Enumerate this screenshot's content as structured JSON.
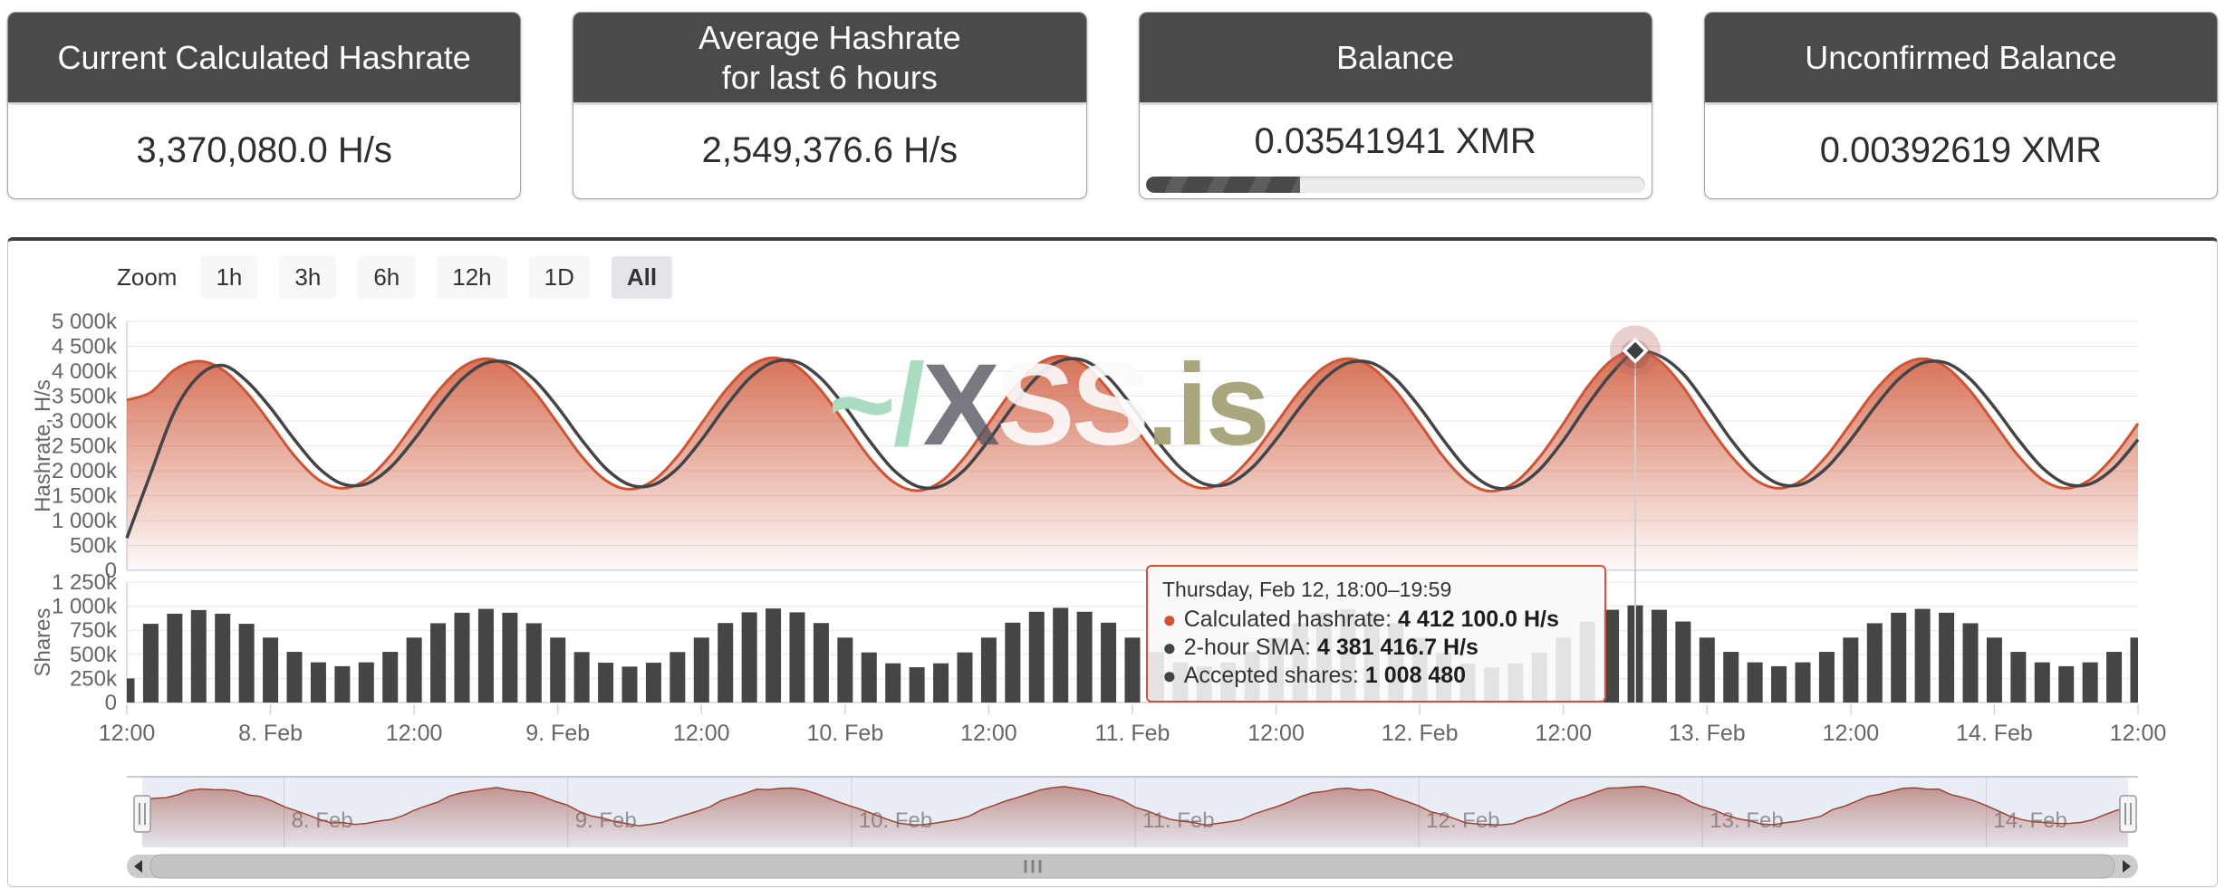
{
  "cards": [
    {
      "title": "Current Calculated Hashrate",
      "value": "3,370,080.0 H/s"
    },
    {
      "title": "Average Hashrate\nfor last 6 hours",
      "value": "2,549,376.6 H/s"
    },
    {
      "title": "Balance",
      "value": "0.03541941 XMR",
      "progress_percent": 31
    },
    {
      "title": "Unconfirmed Balance",
      "value": "0.00392619 XMR"
    }
  ],
  "toolbar": {
    "zoom_label": "Zoom",
    "buttons": [
      "1h",
      "3h",
      "6h",
      "12h",
      "1D",
      "All"
    ],
    "selected": "All"
  },
  "watermark": {
    "part1": "~/",
    "part2": "X",
    "part3": "SS",
    "part4": ".is"
  },
  "tooltip": {
    "header": "Thursday, Feb 12, 18:00–19:59",
    "rows": [
      {
        "label": "Calculated hashrate",
        "value": "4 412 100.0 H/s",
        "bullet_color": "#cf5434"
      },
      {
        "label": "2-hour SMA",
        "value": "4 381 416.7 H/s",
        "bullet_color": "#434348"
      },
      {
        "label": "Accepted shares",
        "value": "1 008 480",
        "bullet_color": "#434348"
      }
    ]
  },
  "chart_data": {
    "type": "stock (area + line + column) with navigator",
    "x_unit": "hours since Feb 7 12:00, one point per 2 hours",
    "x_range_hours": [
      0,
      168
    ],
    "x_tick_interval_hours": 12,
    "x_tick_labels": [
      "12:00",
      "8. Feb",
      "12:00",
      "9. Feb",
      "12:00",
      "10. Feb",
      "12:00",
      "11. Feb",
      "12:00",
      "12. Feb",
      "12:00",
      "13. Feb",
      "12:00",
      "14. Feb",
      "12:00"
    ],
    "hashrate_axis": {
      "title": "Hashrate, H/s",
      "min": 0,
      "max": 5000000,
      "tick_step": 500000,
      "tick_labels": [
        "0",
        "500k",
        "1 000k",
        "1 500k",
        "2 000k",
        "2 500k",
        "3 000k",
        "3 500k",
        "4 000k",
        "4 500k",
        "5 000k"
      ]
    },
    "shares_axis": {
      "title": "Shares",
      "min": 0,
      "max": 1250000,
      "tick_step": 250000,
      "tick_labels": [
        "0",
        "250k",
        "500k",
        "750k",
        "1 000k",
        "1 250k"
      ]
    },
    "series": [
      {
        "name": "Calculated hashrate",
        "type": "area",
        "color": "#cf5434",
        "unit": "H/s (values in thousands)",
        "values_kH": [
          3420,
          3575,
          4032,
          4200,
          4032,
          3575,
          2950,
          2300,
          1824,
          1650,
          1824,
          2300,
          2950,
          3600,
          4076,
          4250,
          4076,
          3600,
          2950,
          2290,
          1807,
          1630,
          1807,
          2290,
          2950,
          3610,
          4093,
          4270,
          4093,
          3610,
          2950,
          2275,
          1781,
          1600,
          1781,
          2275,
          2950,
          3625,
          4119,
          4300,
          4119,
          3625,
          2950,
          2300,
          1824,
          1650,
          1824,
          2300,
          2950,
          3600,
          4076,
          4250,
          4076,
          3600,
          2950,
          2270,
          1772,
          1590,
          1772,
          2270,
          2950,
          3680,
          4214,
          4412.1,
          4214,
          3680,
          2950,
          2300,
          1824,
          1650,
          1824,
          2300,
          2950,
          3600,
          4076,
          4250,
          4076,
          3600,
          2950,
          2300,
          1824,
          1650,
          1824,
          2300,
          2950
        ]
      },
      {
        "name": "2-hour SMA",
        "type": "line",
        "color": "#434348",
        "unit": "H/s (values in thousands)",
        "values_kH": [
          650,
          1950,
          3200,
          3900,
          4116,
          3804,
          3263,
          2625,
          2062,
          1737,
          1737,
          2062,
          2625,
          3275,
          3838,
          4163,
          4163,
          3838,
          3275,
          2620,
          2049,
          1719,
          1719,
          2049,
          2620,
          3280,
          3852,
          4182,
          4182,
          3852,
          3280,
          2613,
          2028,
          1691,
          1691,
          2028,
          2613,
          3288,
          3872,
          4210,
          4210,
          3872,
          3288,
          2625,
          2062,
          1737,
          1737,
          2062,
          2625,
          3275,
          3838,
          4163,
          4163,
          3838,
          3275,
          2610,
          2021,
          1681,
          1681,
          2021,
          2610,
          3315,
          3947,
          4381.4,
          4313,
          3947,
          3315,
          2625,
          2062,
          1737,
          1737,
          2062,
          2625,
          3275,
          3838,
          4163,
          4163,
          3838,
          3275,
          2625,
          2062,
          1737,
          1737,
          2062,
          2625
        ]
      },
      {
        "name": "Accepted shares",
        "type": "column",
        "color": "#454545",
        "unit": "shares (values in thousands)",
        "values_k": [
          250,
          817,
          922,
          960,
          922,
          817,
          674,
          526,
          417,
          377,
          417,
          526,
          674,
          823,
          932,
          972,
          932,
          823,
          674,
          524,
          413,
          373,
          413,
          524,
          674,
          825,
          936,
          976,
          936,
          825,
          674,
          520,
          407,
          366,
          407,
          520,
          674,
          829,
          942,
          983,
          942,
          829,
          674,
          526,
          417,
          377,
          417,
          526,
          674,
          823,
          932,
          972,
          932,
          823,
          674,
          519,
          405,
          363,
          405,
          519,
          674,
          841,
          963,
          1008.5,
          963,
          841,
          674,
          526,
          417,
          377,
          417,
          526,
          674,
          823,
          932,
          972,
          932,
          823,
          674,
          526,
          417,
          377,
          417,
          526,
          674
        ]
      }
    ],
    "marker": {
      "series": "Calculated hashrate",
      "x_hours": 126,
      "value": 4412100
    },
    "navigator": {
      "labels": [
        "8. Feb",
        "9. Feb",
        "10. Feb",
        "11. Feb",
        "12. Feb",
        "13. Feb",
        "14. Feb"
      ],
      "range_selected": "all"
    },
    "legend": "none",
    "grid": "horizontal only"
  }
}
